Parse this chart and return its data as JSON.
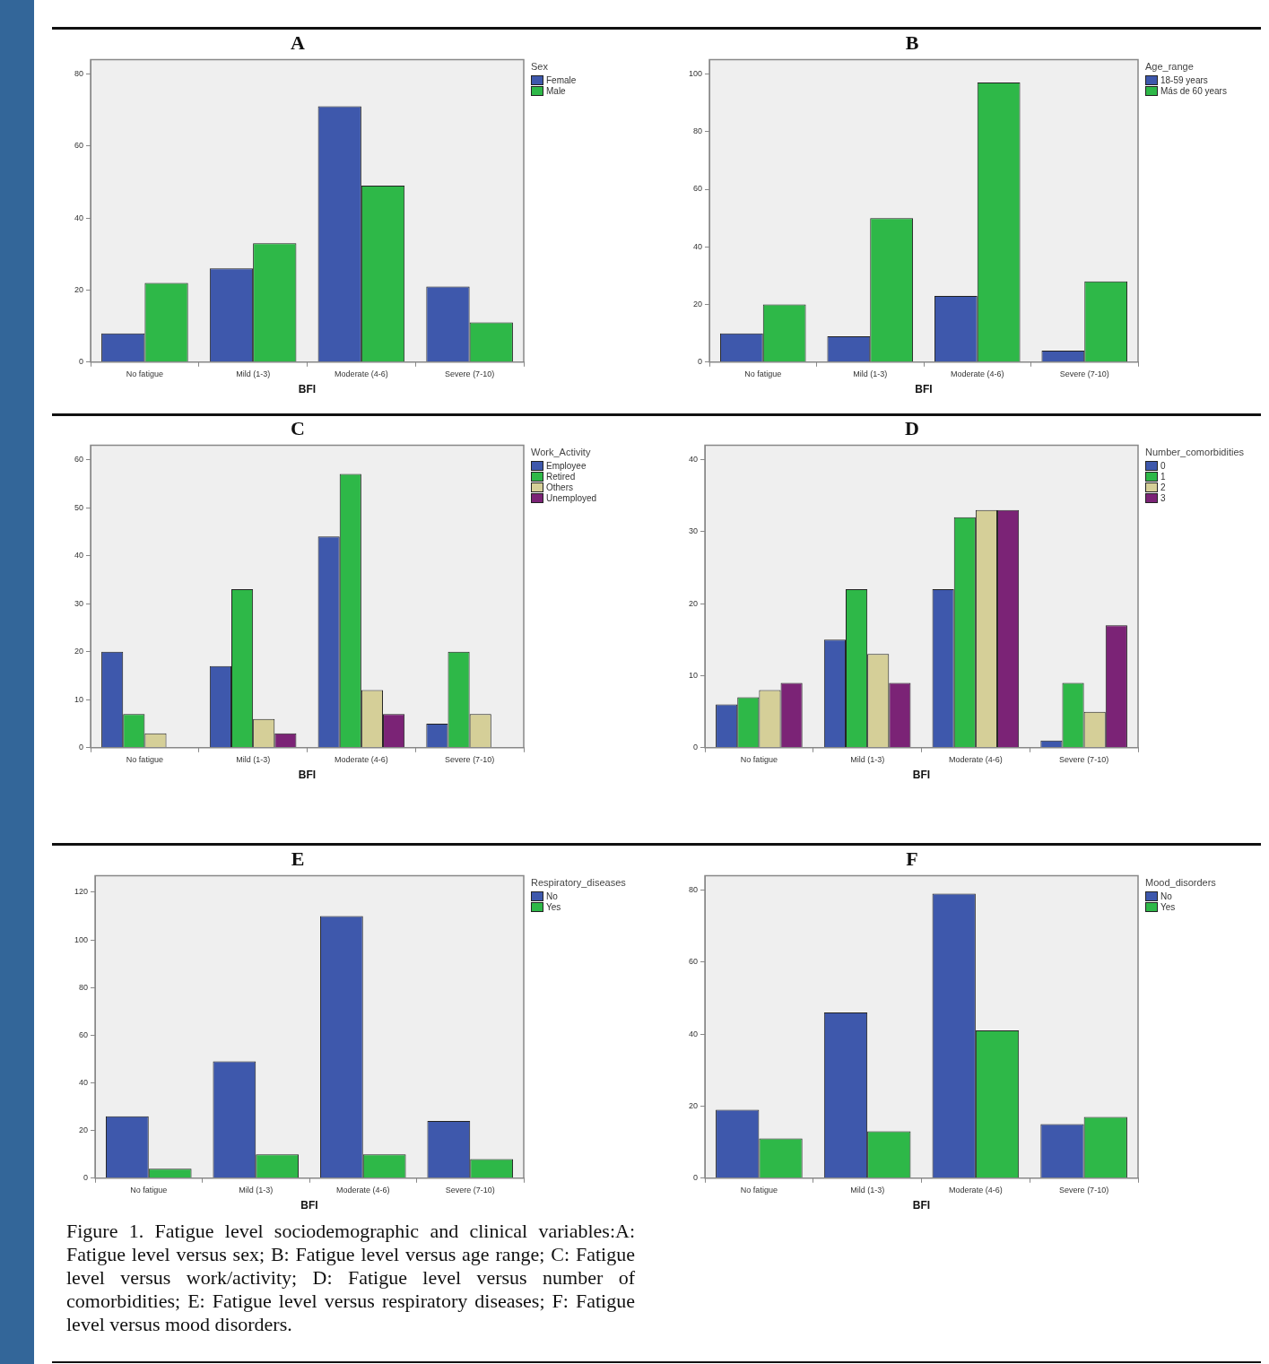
{
  "chart_data": [
    {
      "type": "bar",
      "title": "A",
      "xlabel": "BFI",
      "legend_title": "Sex",
      "legend": "right",
      "categories": [
        "No fatigue",
        "Mild (1-3)",
        "Moderate (4-6)",
        "Severe (7-10)"
      ],
      "ylim": [
        0,
        84
      ],
      "yticks": [
        0,
        20,
        40,
        60,
        80
      ],
      "series": [
        {
          "name": "Female",
          "color": "#3e58ac",
          "values": [
            8,
            26,
            71,
            21
          ]
        },
        {
          "name": "Male",
          "color": "#2eb848",
          "values": [
            22,
            33,
            49,
            11
          ]
        }
      ]
    },
    {
      "type": "bar",
      "title": "B",
      "xlabel": "BFI",
      "legend_title": "Age_range",
      "legend": "right",
      "categories": [
        "No fatigue",
        "Mild (1-3)",
        "Moderate (4-6)",
        "Severe (7-10)"
      ],
      "ylim": [
        0,
        105
      ],
      "yticks": [
        0,
        20,
        40,
        60,
        80,
        100
      ],
      "series": [
        {
          "name": "18-59 years",
          "color": "#3e58ac",
          "values": [
            10,
            9,
            23,
            4
          ]
        },
        {
          "name": "Más de 60 years",
          "color": "#2eb848",
          "values": [
            20,
            50,
            97,
            28
          ]
        }
      ]
    },
    {
      "type": "bar",
      "title": "C",
      "xlabel": "BFI",
      "legend_title": "Work_Activity",
      "legend": "right",
      "categories": [
        "No fatigue",
        "Mild (1-3)",
        "Moderate (4-6)",
        "Severe (7-10)"
      ],
      "ylim": [
        0,
        63
      ],
      "yticks": [
        0,
        10,
        20,
        30,
        40,
        50,
        60
      ],
      "series": [
        {
          "name": "Employee",
          "color": "#3e58ac",
          "values": [
            20,
            17,
            44,
            5
          ]
        },
        {
          "name": "Retired",
          "color": "#2eb848",
          "values": [
            7,
            33,
            57,
            20
          ]
        },
        {
          "name": "Others",
          "color": "#d5cf98",
          "values": [
            3,
            6,
            12,
            7
          ]
        },
        {
          "name": "Unemployed",
          "color": "#7b2376",
          "values": [
            0,
            3,
            7,
            0
          ]
        }
      ]
    },
    {
      "type": "bar",
      "title": "D",
      "xlabel": "BFI",
      "legend_title": "Number_comorbidities",
      "legend": "right",
      "categories": [
        "No fatigue",
        "Mild (1-3)",
        "Moderate (4-6)",
        "Severe (7-10)"
      ],
      "ylim": [
        0,
        42
      ],
      "yticks": [
        0,
        10,
        20,
        30,
        40
      ],
      "series": [
        {
          "name": "0",
          "color": "#3e58ac",
          "values": [
            6,
            15,
            22,
            1
          ]
        },
        {
          "name": "1",
          "color": "#2eb848",
          "values": [
            7,
            22,
            32,
            9
          ]
        },
        {
          "name": "2",
          "color": "#d5cf98",
          "values": [
            8,
            13,
            33,
            5
          ]
        },
        {
          "name": "3",
          "color": "#7b2376",
          "values": [
            9,
            9,
            33,
            17
          ]
        }
      ]
    },
    {
      "type": "bar",
      "title": "E",
      "xlabel": "BFI",
      "legend_title": "Respiratory_diseases",
      "legend": "right",
      "categories": [
        "No fatigue",
        "Mild (1-3)",
        "Moderate (4-6)",
        "Severe (7-10)"
      ],
      "ylim": [
        0,
        127
      ],
      "yticks": [
        0,
        20,
        40,
        60,
        80,
        100,
        120
      ],
      "series": [
        {
          "name": "No",
          "color": "#3e58ac",
          "values": [
            26,
            49,
            110,
            24
          ]
        },
        {
          "name": "Yes",
          "color": "#2eb848",
          "values": [
            4,
            10,
            10,
            8
          ]
        }
      ],
      "annotations": [
        "Figure 1. Fatigue level sociodemographic and clinical variables:A: Fatigue level versus sex; B: Fatigue level versus age range; C: Fatigue level versus work/activity; D: Fatigue level versus number of comorbidities; E: Fatigue level versus respiratory diseases; F: Fatigue level versus mood disorders."
      ]
    },
    {
      "type": "bar",
      "title": "F",
      "xlabel": "BFI",
      "legend_title": "Mood_disorders",
      "legend": "right",
      "categories": [
        "No fatigue",
        "Mild (1-3)",
        "Moderate (4-6)",
        "Severe (7-10)"
      ],
      "ylim": [
        0,
        84
      ],
      "yticks": [
        0,
        20,
        40,
        60,
        80
      ],
      "series": [
        {
          "name": "No",
          "color": "#3e58ac",
          "values": [
            19,
            46,
            79,
            15
          ]
        },
        {
          "name": "Yes",
          "color": "#2eb848",
          "values": [
            11,
            13,
            41,
            17
          ]
        }
      ]
    }
  ]
}
